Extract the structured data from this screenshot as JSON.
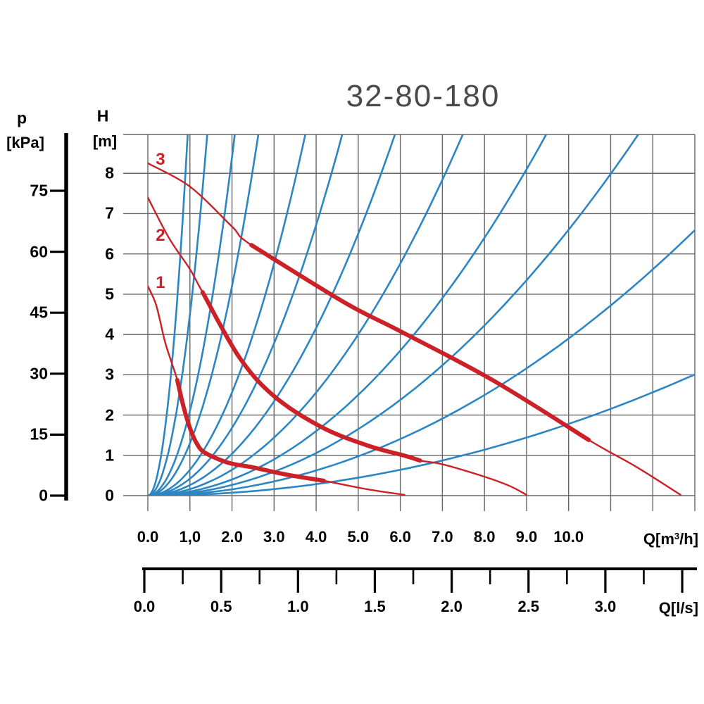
{
  "title": "32-80-180",
  "chart_data": {
    "type": "line",
    "title": "32-80-180",
    "x_axis_primary": {
      "label": "Q[m3/h]",
      "label_prefix": "Q[m",
      "label_exponent": "3",
      "label_suffix": "/h]",
      "range": [
        0,
        13
      ],
      "grid_step": 1,
      "tick_values": [
        0,
        1,
        2,
        3,
        4,
        5,
        6,
        7,
        8,
        9,
        10
      ],
      "tick_labels": [
        "0.0",
        "1,0",
        "2.0",
        "3.0",
        "4.0",
        "5.0",
        "6.0",
        "7.0",
        "8.0",
        "9.0",
        "10.0"
      ]
    },
    "x_axis_secondary": {
      "label": "Q[l/s]",
      "range": [
        0,
        3.5
      ],
      "major_tick_step": 0.5,
      "minor_tick_step": 0.25,
      "tick_values": [
        0,
        0.5,
        1.0,
        1.5,
        2.0,
        2.5,
        3.0
      ],
      "tick_labels": [
        "0.0",
        "0.5",
        "1.0",
        "1.5",
        "2.0",
        "2.5",
        "3.0"
      ],
      "m3h_per_ls": 3.6
    },
    "y_axis_head": {
      "name": "H",
      "unit": "[m]",
      "range": [
        0,
        8.97
      ],
      "grid_step": 1,
      "tick_values": [
        0,
        1,
        2,
        3,
        4,
        5,
        6,
        7,
        8
      ],
      "tick_labels": [
        "0",
        "1",
        "2",
        "3",
        "4",
        "5",
        "6",
        "7",
        "8"
      ]
    },
    "y_axis_pressure": {
      "name": "p",
      "unit": "[kPa]",
      "tick_values": [
        0,
        15,
        30,
        45,
        60,
        75
      ],
      "tick_labels": [
        "0",
        "15",
        "30",
        "45",
        "60",
        "75"
      ]
    },
    "pump_curves": [
      {
        "label": "1",
        "label_pos": [
          0.3,
          5.28
        ],
        "duty_range": [
          0.7,
          4.18
        ],
        "points": [
          [
            0,
            5.2
          ],
          [
            0.2,
            4.72
          ],
          [
            0.4,
            3.85
          ],
          [
            0.55,
            3.35
          ],
          [
            0.7,
            2.87
          ],
          [
            0.85,
            2.2
          ],
          [
            1.0,
            1.68
          ],
          [
            1.15,
            1.32
          ],
          [
            1.35,
            1.07
          ],
          [
            1.9,
            0.82
          ],
          [
            2.5,
            0.7
          ],
          [
            3.3,
            0.52
          ],
          [
            4.18,
            0.37
          ],
          [
            5.2,
            0.16
          ],
          [
            6.1,
            0.02
          ]
        ]
      },
      {
        "label": "2",
        "label_pos": [
          0.3,
          6.45
        ],
        "duty_range": [
          1.3,
          6.47
        ],
        "points": [
          [
            0,
            7.4
          ],
          [
            0.5,
            6.4
          ],
          [
            1.0,
            5.62
          ],
          [
            1.3,
            5.05
          ],
          [
            2.17,
            3.44
          ],
          [
            3.0,
            2.47
          ],
          [
            4.13,
            1.7
          ],
          [
            5.23,
            1.24
          ],
          [
            6.07,
            1.0
          ],
          [
            6.47,
            0.87
          ],
          [
            7.0,
            0.78
          ],
          [
            8.0,
            0.47
          ],
          [
            8.6,
            0.24
          ],
          [
            9.0,
            0.02
          ]
        ]
      },
      {
        "label": "3",
        "label_pos": [
          0.3,
          8.33
        ],
        "duty_range": [
          2.46,
          10.48
        ],
        "points": [
          [
            0,
            8.25
          ],
          [
            1.0,
            7.67
          ],
          [
            2.0,
            6.68
          ],
          [
            2.46,
            6.22
          ],
          [
            4.68,
            4.79
          ],
          [
            6.0,
            4.08
          ],
          [
            8.19,
            2.87
          ],
          [
            10.48,
            1.38
          ],
          [
            11.6,
            0.72
          ],
          [
            12.66,
            0.02
          ]
        ]
      }
    ],
    "system_curves": {
      "model": "H = k * Q^2",
      "k_values": [
        10,
        4.5,
        2.1,
        1.3,
        0.64,
        0.42,
        0.26,
        0.16,
        0.1,
        0.066,
        0.039,
        0.0178
      ]
    },
    "colors": {
      "pump_curve": "#cc2127",
      "system_curve": "#2b86c3",
      "grid": "#666666",
      "axis": "#000000",
      "title": "#4a4a4a"
    }
  }
}
